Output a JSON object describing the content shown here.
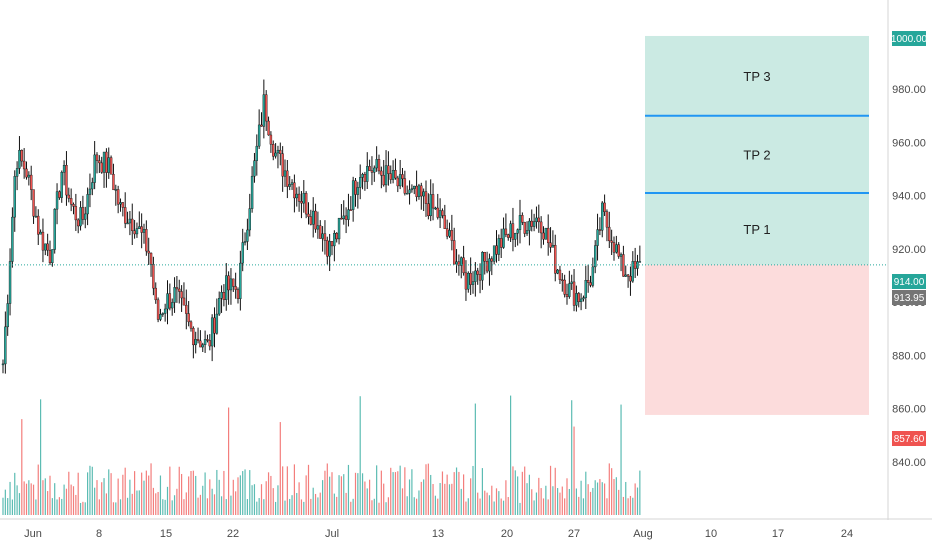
{
  "chart_data": {
    "type": "candlestick",
    "x_ticks": [
      "Jun",
      "8",
      "15",
      "22",
      "Jul",
      "13",
      "20",
      "27",
      "Aug",
      "10",
      "17",
      "24"
    ],
    "y_ticks": [
      "840.00",
      "860.00",
      "880.00",
      "900.00",
      "920.00",
      "940.00",
      "960.00",
      "980.00",
      "1000.00"
    ],
    "ylim": [
      820,
      1006
    ],
    "price_badges": {
      "top": "1000.00",
      "current": "914.00",
      "last": "913.95",
      "stop": "857.60"
    },
    "position": {
      "entry": 914.0,
      "stop": 857.6,
      "target_top": 1000.0,
      "targets": [
        {
          "label": "TP 3",
          "value": 970
        },
        {
          "label": "TP 2",
          "value": 941
        },
        {
          "label": "TP 1",
          "value": 914
        }
      ],
      "profit_color": "#cbeae3",
      "loss_color": "#fcdcdc"
    },
    "colors": {
      "up": "#26a69a",
      "down": "#ef5350",
      "candle_outline": "#000000",
      "target_line": "#2196f3",
      "price_line": "#26a69a",
      "stop_badge": "#ef5350",
      "current_badge": "#26a69a",
      "last_badge": "#757575"
    }
  }
}
